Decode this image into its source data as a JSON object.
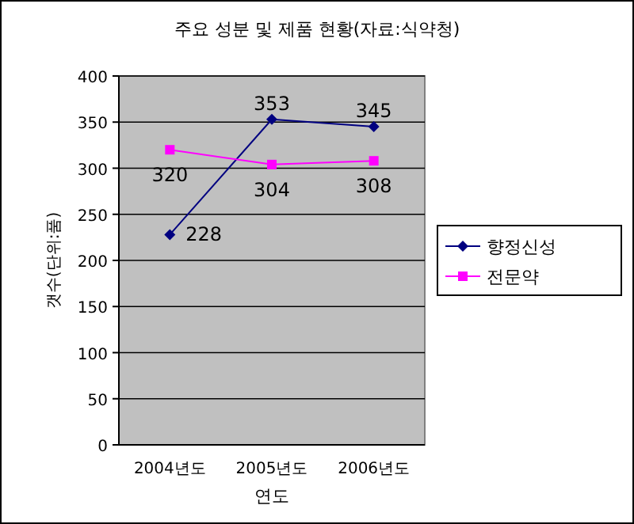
{
  "chart_data": {
    "type": "line",
    "title": "주요 성분 및 제품 현황(자료:식약청)",
    "xlabel": "연도",
    "ylabel": "갯수(단위:품)",
    "categories": [
      "2004년도",
      "2005년도",
      "2006년도"
    ],
    "series": [
      {
        "name": "향정신성",
        "color": "#000080",
        "values": [
          228,
          353,
          345
        ],
        "marker": "diamond"
      },
      {
        "name": "전문약",
        "color": "#ff00ff",
        "values": [
          320,
          304,
          308
        ],
        "marker": "square"
      }
    ],
    "ylim": [
      0,
      400
    ],
    "yticks": [
      0,
      50,
      100,
      150,
      200,
      250,
      300,
      350,
      400
    ],
    "grid": "y",
    "legend": "right",
    "data_labels": true
  }
}
